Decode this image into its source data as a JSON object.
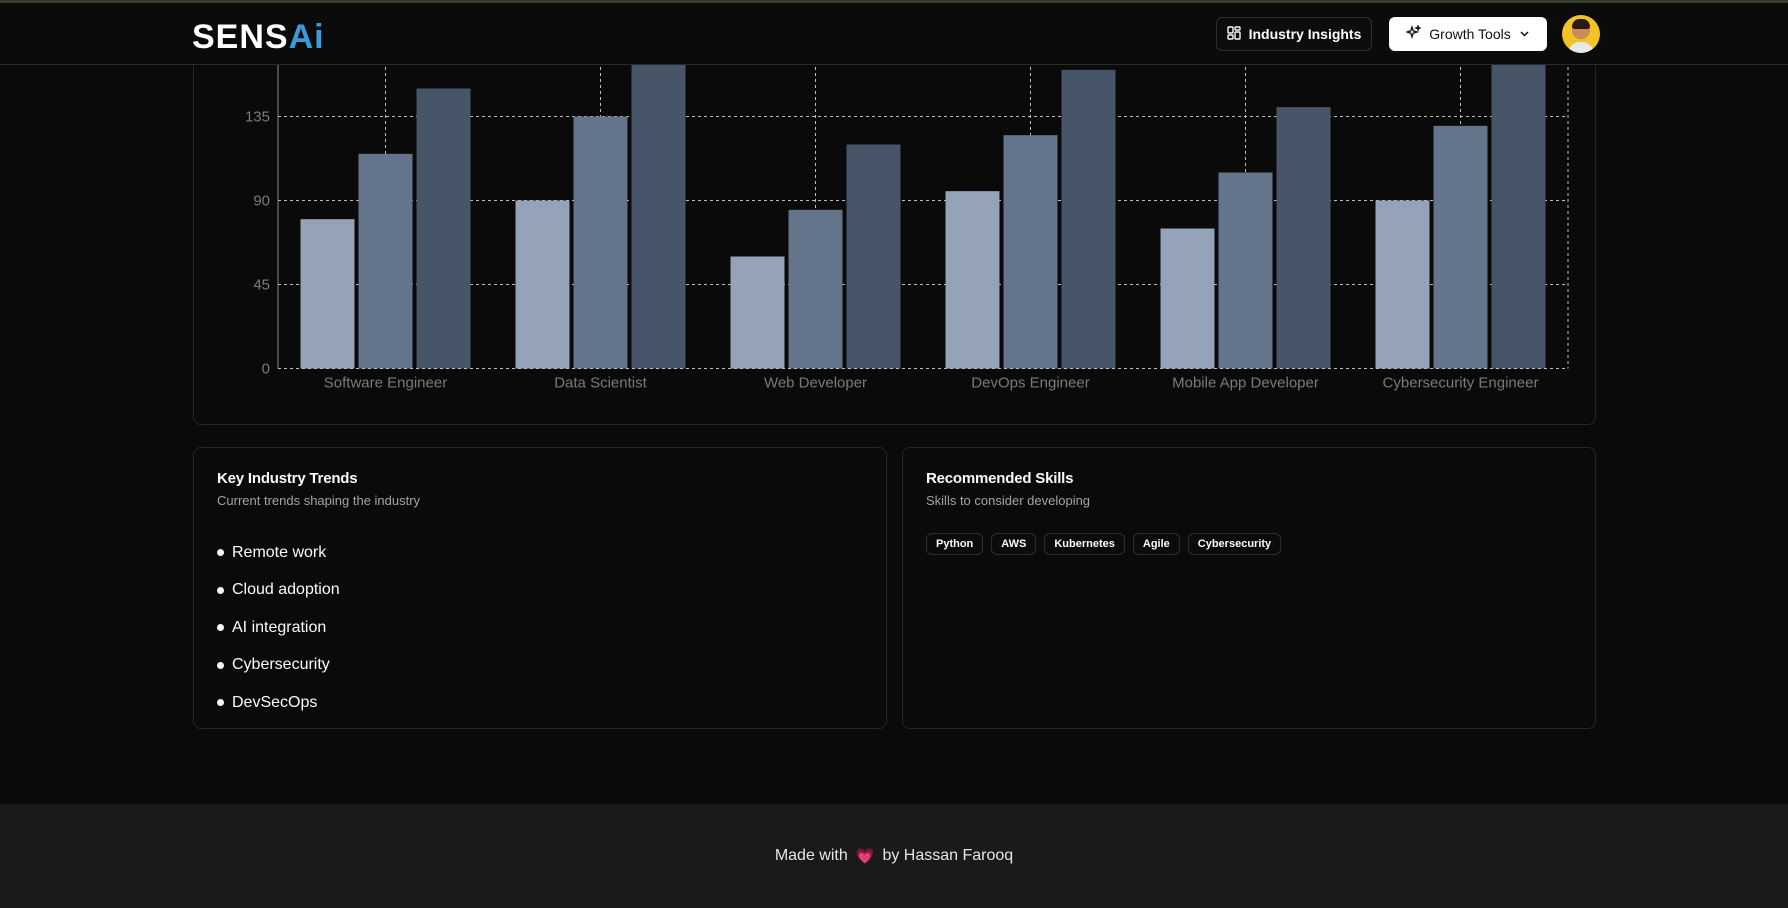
{
  "header": {
    "logo_main": "SENS",
    "logo_accent": "Ai",
    "insights_label": "Industry Insights",
    "growth_label": "Growth Tools",
    "icons": {
      "insights": "dashboard-icon",
      "growth": "sparkles-icon",
      "dropdown": "chevron-down-icon"
    }
  },
  "chart_data": {
    "type": "bar",
    "categories": [
      "Software Engineer",
      "Data Scientist",
      "Web Developer",
      "DevOps Engineer",
      "Mobile App Developer",
      "Cybersecurity Engineer"
    ],
    "series": [
      {
        "values": [
          80,
          90,
          60,
          95,
          75,
          90
        ],
        "color": "#94a3b8"
      },
      {
        "values": [
          115,
          135,
          85,
          125,
          105,
          130
        ],
        "color": "#64748b"
      },
      {
        "values": [
          150,
          170,
          120,
          160,
          140,
          175
        ],
        "color": "#475569"
      }
    ],
    "y_ticks": [
      0,
      45,
      90,
      135
    ],
    "ylim": [
      0,
      180
    ],
    "grid": true
  },
  "trends": {
    "title": "Key Industry Trends",
    "subtitle": "Current trends shaping the industry",
    "items": [
      "Remote work",
      "Cloud adoption",
      "AI integration",
      "Cybersecurity",
      "DevSecOps"
    ]
  },
  "skills": {
    "title": "Recommended Skills",
    "subtitle": "Skills to consider developing",
    "items": [
      "Python",
      "AWS",
      "Kubernetes",
      "Agile",
      "Cybersecurity"
    ]
  },
  "footer": {
    "prefix": "Made with",
    "heart": "💗",
    "suffix": "by Hassan Farooq"
  }
}
